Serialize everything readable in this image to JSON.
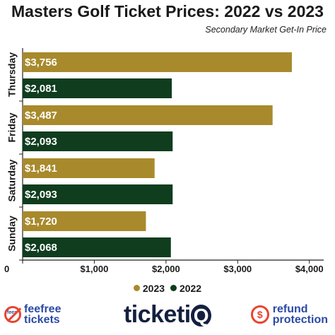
{
  "chart_data": {
    "type": "bar",
    "orientation": "horizontal",
    "title": "Masters Golf Ticket Prices: 2022 vs 2023",
    "subtitle": "Secondary Market Get-In Price",
    "categories": [
      "Thursday",
      "Friday",
      "Saturday",
      "Sunday"
    ],
    "series": [
      {
        "name": "2023",
        "color": "#a88a2c",
        "values": [
          3756,
          3487,
          1841,
          1720
        ],
        "labels": [
          "$3,756",
          "$3,487",
          "$1,841",
          "$1,720"
        ]
      },
      {
        "name": "2022",
        "color": "#0f3d1e",
        "values": [
          2081,
          2093,
          2093,
          2068
        ],
        "labels": [
          "$2,081",
          "$2,093",
          "$2,093",
          "$2,068"
        ]
      }
    ],
    "xticks": [
      0,
      1000,
      2000,
      3000,
      4000
    ],
    "xtick_labels": [
      "0",
      "$1,000",
      "$2,000",
      "$3,000",
      "$4,000"
    ],
    "xlim": [
      0,
      4200
    ],
    "grid": false,
    "legend_position": "bottom"
  },
  "footer": {
    "left_logo_line1": "feefree",
    "left_logo_line2": "tickets",
    "left_logo_mini": "fees",
    "brand": "ticketi",
    "brand_q": "Q",
    "right_logo_line1": "refund",
    "right_logo_line2": "protection",
    "right_logo_symbol": "$"
  },
  "icons": [
    "no-fees-icon",
    "refund-dollar-icon"
  ]
}
